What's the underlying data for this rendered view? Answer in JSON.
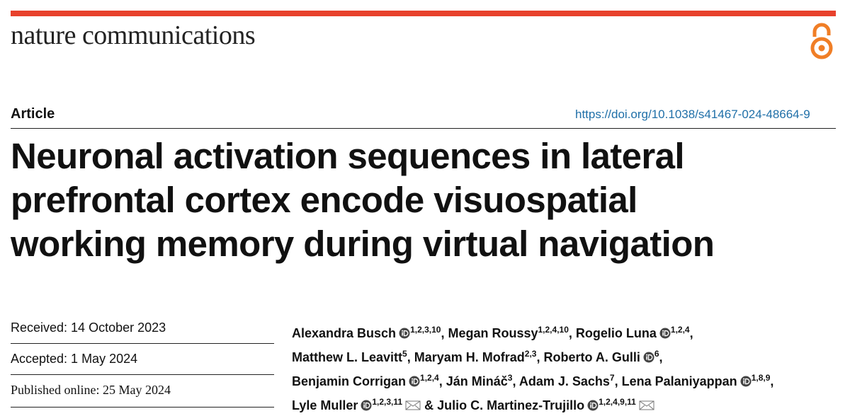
{
  "header": {
    "journal": "nature communications"
  },
  "article": {
    "type": "Article",
    "doi": "https://doi.org/10.1038/s41467-024-48664-9",
    "title_lines": [
      "Neuronal activation sequences in lateral",
      "prefrontal cortex encode visuospatial",
      "working memory during virtual navigation"
    ]
  },
  "dates": [
    "Received: 14 October 2023",
    "Accepted: 1 May 2024",
    "Published online: 25 May 2024"
  ],
  "author_lines": [
    [
      {
        "name": "Alexandra Busch",
        "orcid": true,
        "affiliations": "1,2,3,10",
        "after": ","
      },
      {
        "name": "Megan Roussy",
        "orcid": false,
        "affiliations": "1,2,4,10",
        "after": ","
      },
      {
        "name": "Rogelio Luna",
        "orcid": true,
        "affiliations": "1,2,4",
        "after": ","
      }
    ],
    [
      {
        "name": "Matthew L. Leavitt",
        "orcid": false,
        "affiliations": "5",
        "after": ","
      },
      {
        "name": "Maryam H. Mofrad",
        "orcid": false,
        "affiliations": "2,3",
        "after": ","
      },
      {
        "name": "Roberto A. Gulli",
        "orcid": true,
        "affiliations": "6",
        "after": ","
      }
    ],
    [
      {
        "name": "Benjamin Corrigan",
        "orcid": true,
        "affiliations": "1,2,4",
        "after": ","
      },
      {
        "name": "Ján Mináč",
        "orcid": false,
        "affiliations": "3",
        "after": ","
      },
      {
        "name": "Adam J. Sachs",
        "orcid": false,
        "affiliations": "7",
        "after": ","
      },
      {
        "name": "Lena Palaniyappan",
        "orcid": true,
        "affiliations": "1,8,9",
        "after": ","
      }
    ],
    [
      {
        "name": "Lyle Muller",
        "orcid": true,
        "affiliations": "1,2,3,11",
        "email": true
      },
      {
        "before": "&",
        "name": "Julio C. Martinez-Trujillo",
        "orcid": true,
        "affiliations": "1,2,4,9,11",
        "email": true
      }
    ]
  ]
}
